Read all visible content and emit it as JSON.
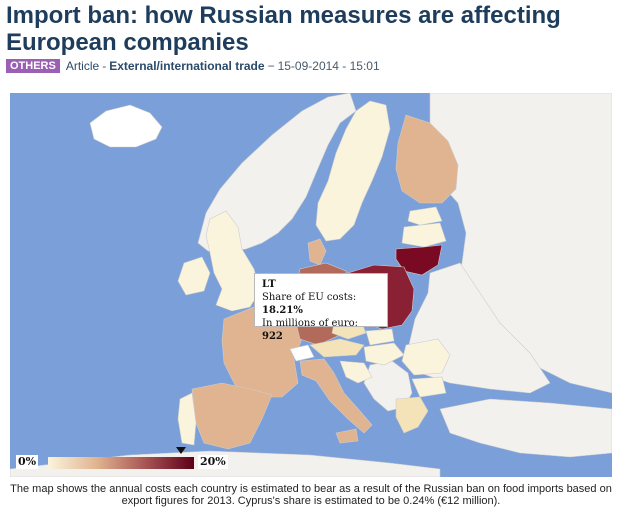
{
  "article": {
    "title": "Import ban: how Russian measures are affecting European companies",
    "category_tag": "OTHERS",
    "type": "Article",
    "separator": "-",
    "topic": "External/international trade",
    "date": "15-09-2014 - 15:01"
  },
  "map": {
    "colors": {
      "sea": "#7a9fd9",
      "no_data": "#ffffff",
      "low": "#fbf4dc",
      "mid": "#e0b490",
      "high": "#a85454",
      "max": "#5c0018",
      "non_eu": "#f3f1ee"
    },
    "tooltip": {
      "country_code": "LT",
      "share_label": "Share of EU costs:",
      "share_value": "18.21%",
      "millions_label": "In millions of euro:",
      "millions_value": "922"
    },
    "legend": {
      "min_label": "0%",
      "max_label": "20%",
      "marker_value_percent": 18.21
    }
  },
  "caption": "The map shows the annual costs each country is estimated to bear as a result of the Russian ban on food imports based on export figures for 2013. Cyprus's share is estimated to be 0.24% (€12 million)."
}
